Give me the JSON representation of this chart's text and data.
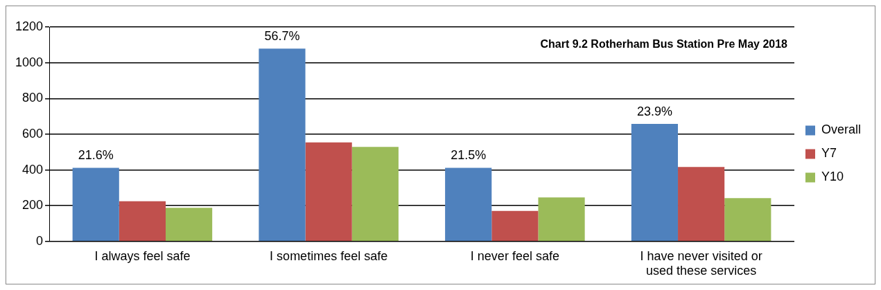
{
  "chart_data": {
    "type": "bar",
    "title": "Chart 9.2 Rotherham Bus Station Pre May 2018",
    "categories": [
      "I always feel safe",
      "I sometimes feel safe",
      "I never feel safe",
      "I have never visited or used these services"
    ],
    "series": [
      {
        "name": "Overall",
        "color": "#4f81bd",
        "values": [
          412,
          1079,
          412,
          658
        ]
      },
      {
        "name": "Y7",
        "color": "#c0504d",
        "values": [
          225,
          554,
          171,
          417
        ]
      },
      {
        "name": "Y10",
        "color": "#9bbb59",
        "values": [
          188,
          529,
          246,
          242
        ]
      }
    ],
    "annotations": [
      "21.6%",
      "56.7%",
      "21.5%",
      "23.9%"
    ],
    "ylim": [
      0,
      1200
    ],
    "yticks": [
      0,
      200,
      400,
      600,
      800,
      1000,
      1200
    ],
    "grid": "y",
    "legend": "right"
  }
}
